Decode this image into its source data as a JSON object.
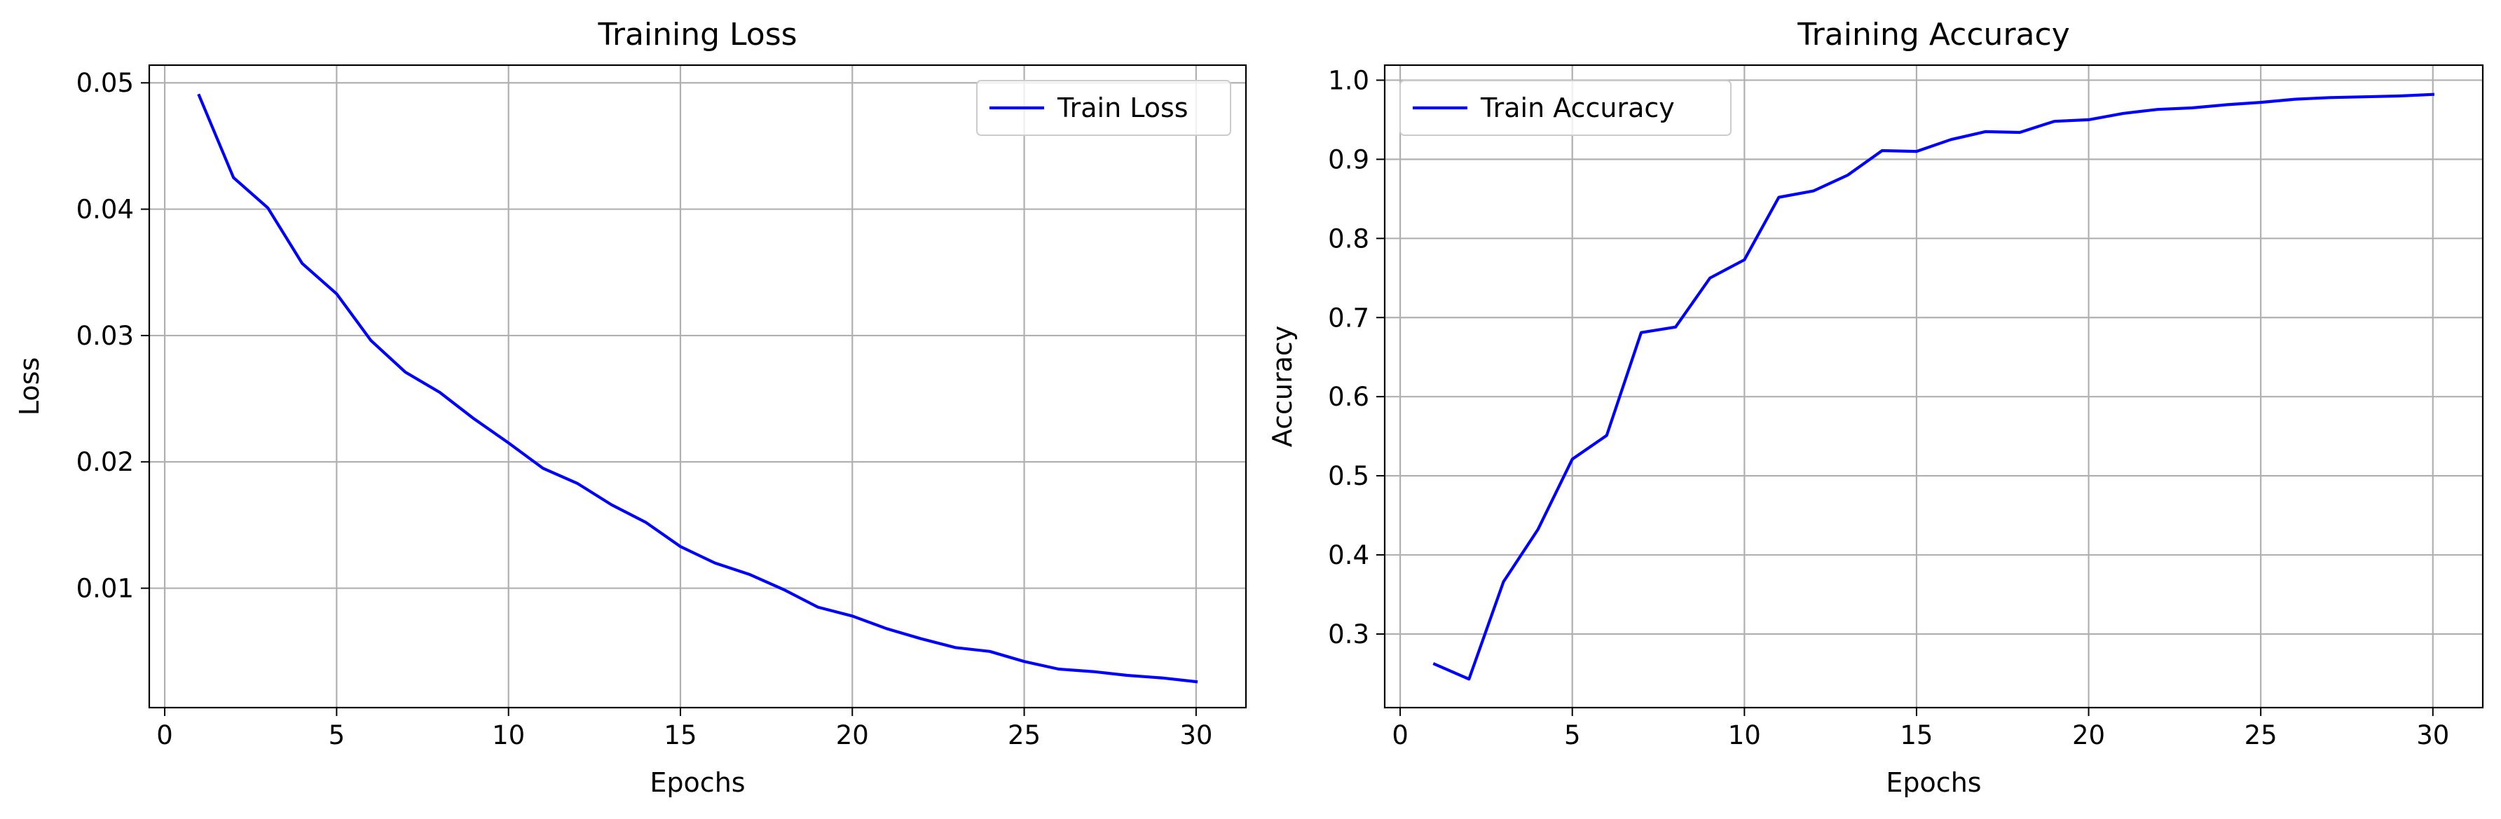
{
  "chart_data": [
    {
      "type": "line",
      "title": "Training Loss",
      "xlabel": "Epochs",
      "ylabel": "Loss",
      "xlim": [
        -0.45,
        31.45
      ],
      "ylim": [
        0.00055,
        0.0514
      ],
      "xticks": [
        0,
        5,
        10,
        15,
        20,
        25,
        30
      ],
      "xtick_labels": [
        "0",
        "5",
        "10",
        "15",
        "20",
        "25",
        "30"
      ],
      "yticks": [
        0.01,
        0.02,
        0.03,
        0.04,
        0.05
      ],
      "ytick_labels": [
        "0.01",
        "0.02",
        "0.03",
        "0.04",
        "0.05"
      ],
      "grid": true,
      "legend_position": "top-right",
      "x": [
        1,
        2,
        3,
        4,
        5,
        6,
        7,
        8,
        9,
        10,
        11,
        12,
        13,
        14,
        15,
        16,
        17,
        18,
        19,
        20,
        21,
        22,
        23,
        24,
        25,
        26,
        27,
        28,
        29,
        30
      ],
      "series": [
        {
          "name": "Train Loss",
          "color": "#0000ff",
          "values": [
            0.049,
            0.0425,
            0.0401,
            0.0357,
            0.0333,
            0.0296,
            0.0271,
            0.0255,
            0.0234,
            0.0215,
            0.0195,
            0.0183,
            0.0166,
            0.0152,
            0.0133,
            0.012,
            0.0111,
            0.0099,
            0.0085,
            0.0078,
            0.0068,
            0.006,
            0.0053,
            0.005,
            0.0042,
            0.0036,
            0.0034,
            0.0031,
            0.0029,
            0.0026
          ]
        }
      ]
    },
    {
      "type": "line",
      "title": "Training Accuracy",
      "xlabel": "Epochs",
      "ylabel": "Accuracy",
      "xlim": [
        -0.45,
        31.45
      ],
      "ylim": [
        0.207,
        1.019
      ],
      "xticks": [
        0,
        5,
        10,
        15,
        20,
        25,
        30
      ],
      "xtick_labels": [
        "0",
        "5",
        "10",
        "15",
        "20",
        "25",
        "30"
      ],
      "yticks": [
        0.3,
        0.4,
        0.5,
        0.6,
        0.7,
        0.8,
        0.9,
        1.0
      ],
      "ytick_labels": [
        "0.3",
        "0.4",
        "0.5",
        "0.6",
        "0.7",
        "0.8",
        "0.9",
        "1.0"
      ],
      "grid": true,
      "legend_position": "top-left",
      "x": [
        1,
        2,
        3,
        4,
        5,
        6,
        7,
        8,
        9,
        10,
        11,
        12,
        13,
        14,
        15,
        16,
        17,
        18,
        19,
        20,
        21,
        22,
        23,
        24,
        25,
        26,
        27,
        28,
        29,
        30
      ],
      "series": [
        {
          "name": "Train Accuracy",
          "color": "#0000ff",
          "values": [
            0.262,
            0.243,
            0.366,
            0.432,
            0.521,
            0.551,
            0.681,
            0.688,
            0.75,
            0.773,
            0.852,
            0.86,
            0.88,
            0.911,
            0.91,
            0.925,
            0.935,
            0.934,
            0.948,
            0.95,
            0.958,
            0.963,
            0.965,
            0.969,
            0.972,
            0.976,
            0.978,
            0.979,
            0.98,
            0.982
          ]
        }
      ]
    }
  ]
}
